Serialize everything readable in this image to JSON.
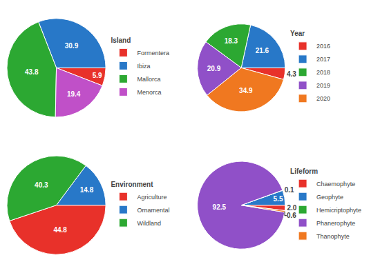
{
  "chart_data": [
    {
      "type": "pie",
      "title": "Island",
      "categories": [
        "Formentera",
        "Ibiza",
        "Mallorca",
        "Menorca"
      ],
      "values": [
        5.9,
        30.9,
        43.8,
        19.4
      ],
      "colors": [
        "#e8312a",
        "#2878c8",
        "#2ca832",
        "#c050c8"
      ],
      "data_labels": true,
      "legend": "right"
    },
    {
      "type": "pie",
      "title": "Year",
      "categories": [
        "2016",
        "2017",
        "2018",
        "2019",
        "2020"
      ],
      "values": [
        4.3,
        21.6,
        18.3,
        20.9,
        34.9
      ],
      "colors": [
        "#e8312a",
        "#2878c8",
        "#2ca832",
        "#9050c8",
        "#f07820"
      ],
      "data_labels": true,
      "legend": "right"
    },
    {
      "type": "pie",
      "title": "Environment",
      "categories": [
        "Agriculture",
        "Ornamental",
        "Wildland"
      ],
      "values": [
        44.8,
        14.8,
        40.3
      ],
      "colors": [
        "#e8312a",
        "#2878c8",
        "#2ca832"
      ],
      "data_labels": true,
      "legend": "right"
    },
    {
      "type": "pie",
      "title": "Lifeform",
      "categories": [
        "Chaemophyte",
        "Geophyte",
        "Hemicriptophyte",
        "Phanerophyte",
        "Thanophyte"
      ],
      "values": [
        2.0,
        5.5,
        0.1,
        92.5,
        0.6
      ],
      "value_labels": [
        "2.0",
        "5.5",
        "0.1",
        "92.5",
        "0.6"
      ],
      "colors": [
        "#e8312a",
        "#2878c8",
        "#2ca832",
        "#9050c8",
        "#f07820"
      ],
      "data_labels": true,
      "legend": "right"
    }
  ]
}
